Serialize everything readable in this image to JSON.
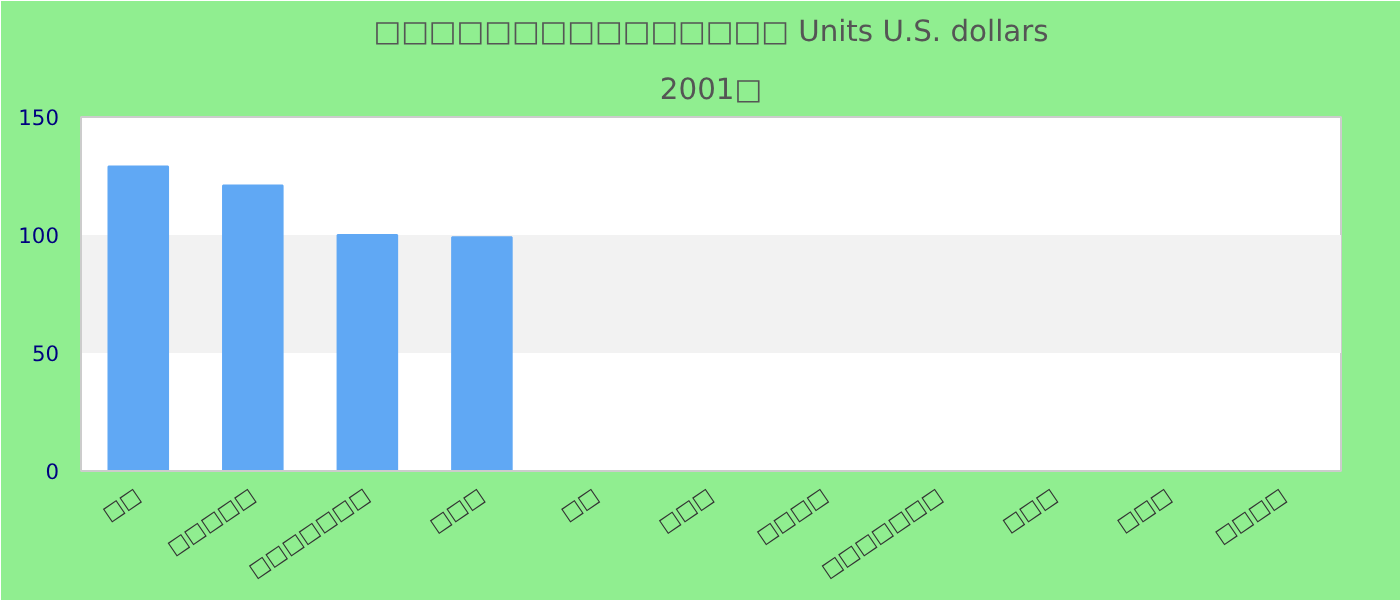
{
  "chart_data": {
    "type": "bar",
    "title": "□□□□□□□□□□□□□□□ Units U.S. dollars",
    "subtitle": "2001□",
    "categories": [
      "□□",
      "□□□□□",
      "□□□□□□□",
      "□□□",
      "□□",
      "□□□",
      "□□□□",
      "□□□□□□□",
      "□□□",
      "□□□",
      "□□□□"
    ],
    "values": [
      129,
      121,
      100,
      99,
      null,
      null,
      null,
      null,
      null,
      null,
      null
    ],
    "color": "#60a8f4",
    "ylim": [
      0,
      150
    ],
    "yticks": [
      0,
      50,
      100,
      150
    ],
    "bands": [
      {
        "axis": "y",
        "from": 50,
        "to": 100,
        "color": "#f2f2f2"
      }
    ]
  }
}
